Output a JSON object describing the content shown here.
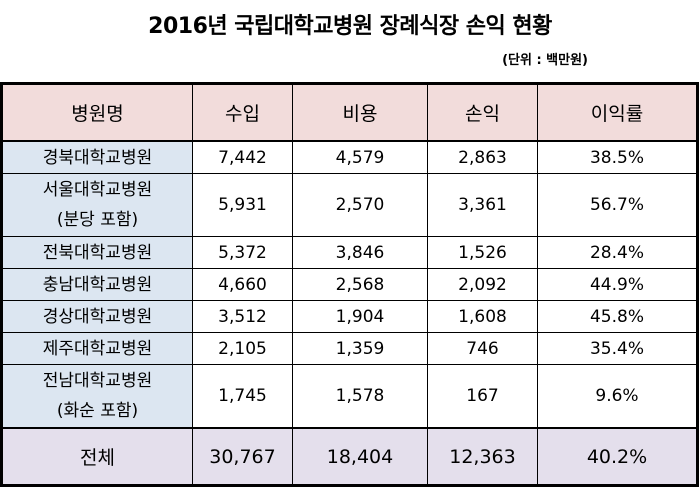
{
  "title": "2016년 국립대학교병원 장례식장 손익 현황",
  "unit": "(단위 : 백만원)",
  "headers": [
    "병원명",
    "수입",
    "비용",
    "손익",
    "이익률"
  ],
  "rows": [
    {
      "name": [
        "경북대학교병원"
      ],
      "income": "7,442",
      "cost": "4,579",
      "profit": "2,863",
      "margin": "38.5%"
    },
    {
      "name": [
        "서울대학교병원",
        "(분당 포함)"
      ],
      "income": "5,931",
      "cost": "2,570",
      "profit": "3,361",
      "margin": "56.7%"
    },
    {
      "name": [
        "전북대학교병원"
      ],
      "income": "5,372",
      "cost": "3,846",
      "profit": "1,526",
      "margin": "28.4%"
    },
    {
      "name": [
        "충남대학교병원"
      ],
      "income": "4,660",
      "cost": "2,568",
      "profit": "2,092",
      "margin": "44.9%"
    },
    {
      "name": [
        "경상대학교병원"
      ],
      "income": "3,512",
      "cost": "1,904",
      "profit": "1,608",
      "margin": "45.8%"
    },
    {
      "name": [
        "제주대학교병원"
      ],
      "income": "2,105",
      "cost": "1,359",
      "profit": "746",
      "margin": "35.4%"
    },
    {
      "name": [
        "전남대학교병원",
        "(화순 포함)"
      ],
      "income": "1,745",
      "cost": "1,578",
      "profit": "167",
      "margin": "9.6%"
    }
  ],
  "total": {
    "name": "전체",
    "income": "30,767",
    "cost": "18,404",
    "profit": "12,363",
    "margin": "40.2%"
  },
  "colors": {
    "header_bg": "#f2dcdb",
    "name_bg": "#dce6f1",
    "total_bg": "#e4dfec"
  }
}
